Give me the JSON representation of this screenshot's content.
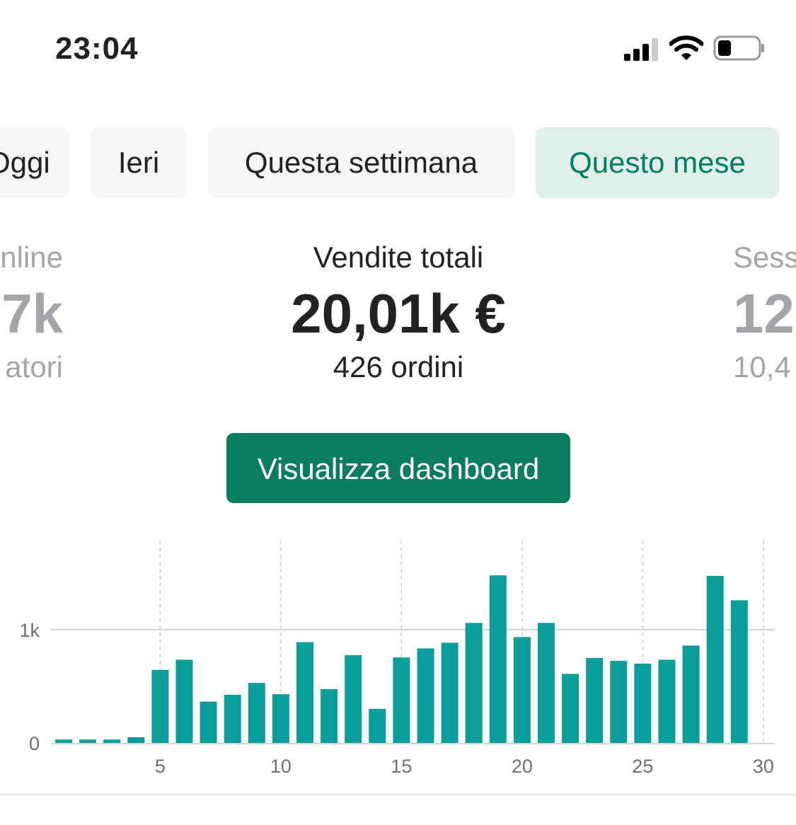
{
  "status_bar": {
    "time": "23:04"
  },
  "tabs": [
    {
      "label": "Oggi",
      "visible_text": "ggi",
      "active": false
    },
    {
      "label": "Ieri",
      "active": false
    },
    {
      "label": "Questa settimana",
      "active": false
    },
    {
      "label": "Questo mese",
      "active": true
    }
  ],
  "metrics": {
    "left": {
      "label": "nline",
      "value": "7k",
      "sub": "atori"
    },
    "center": {
      "label": "Vendite totali",
      "value": "20,01k €",
      "sub": "426 ordini"
    },
    "right": {
      "label": "Sess",
      "value": "12",
      "sub": "10,4"
    }
  },
  "dashboard_button": "Visualizza dashboard",
  "colors": {
    "accent": "#008060",
    "bar": "#0a9e9a",
    "button": "#0a7d5f",
    "active_tab_bg": "#e0efe9"
  },
  "chart_data": {
    "type": "bar",
    "x": [
      1,
      2,
      3,
      4,
      5,
      6,
      7,
      8,
      9,
      10,
      11,
      12,
      13,
      14,
      15,
      16,
      17,
      18,
      19,
      20,
      21,
      22,
      23,
      24,
      25,
      26,
      27,
      28,
      29
    ],
    "values": [
      30,
      30,
      30,
      50,
      645,
      735,
      365,
      425,
      530,
      430,
      890,
      475,
      775,
      300,
      755,
      835,
      885,
      1060,
      1480,
      935,
      1060,
      610,
      750,
      725,
      700,
      735,
      860,
      1475,
      1260
    ],
    "xticks": [
      "5",
      "10",
      "15",
      "20",
      "25",
      "30"
    ],
    "yticks": [
      "0",
      "1k"
    ],
    "ylim": [
      0,
      1800
    ],
    "xlim": [
      1,
      30
    ],
    "grid": true
  }
}
